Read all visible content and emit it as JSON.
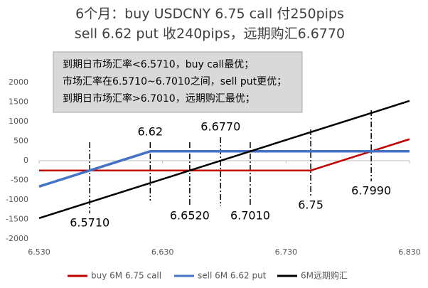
{
  "chart_data": {
    "type": "line",
    "title": [
      "6个月：buy USDCNY  6.75 call  付250pips",
      "sell 6.62 put 收240pips，远期购汇6.6770"
    ],
    "text_box": [
      "到期日市场汇率<6.5710，buy call最优；",
      "市场汇率在6.5710~6.7010之间，sell put更优；",
      "到期日市场汇率>6.7010，远期购汇最优；"
    ],
    "series": [
      {
        "name": "buy 6M 6.75 call",
        "color": "#c00000",
        "x": [
          6.53,
          6.75,
          6.83
        ],
        "values": [
          -250,
          -250,
          550
        ]
      },
      {
        "name": "sell 6M 6.62 put",
        "color": "#4472c4",
        "x": [
          6.53,
          6.62,
          6.83
        ],
        "values": [
          -660,
          240,
          240
        ]
      },
      {
        "name": "6M远期购汇",
        "color": "#000000",
        "x": [
          6.53,
          6.83
        ],
        "values": [
          -1470,
          1530
        ]
      }
    ],
    "annotations": [
      {
        "value": 6.571,
        "label": "6.5710"
      },
      {
        "value": 6.62,
        "label": "6.62"
      },
      {
        "value": 6.652,
        "label": "6.6520"
      },
      {
        "value": 6.677,
        "label": "6.6770"
      },
      {
        "value": 6.701,
        "label": "6.7010"
      },
      {
        "value": 6.75,
        "label": "6.75"
      },
      {
        "value": 6.799,
        "label": "6.7990"
      }
    ],
    "xlim": [
      6.53,
      6.83
    ],
    "xticks": [
      {
        "value": 6.53,
        "label": "6.530"
      },
      {
        "value": 6.63,
        "label": "6.630"
      },
      {
        "value": 6.73,
        "label": "6.730"
      },
      {
        "value": 6.83,
        "label": "6.830"
      }
    ],
    "ylim": [
      -2000,
      2000
    ],
    "yticks": [
      -2000,
      -1500,
      -1000,
      -500,
      0,
      500,
      1000,
      1500,
      2000
    ],
    "legend": "bottom"
  }
}
